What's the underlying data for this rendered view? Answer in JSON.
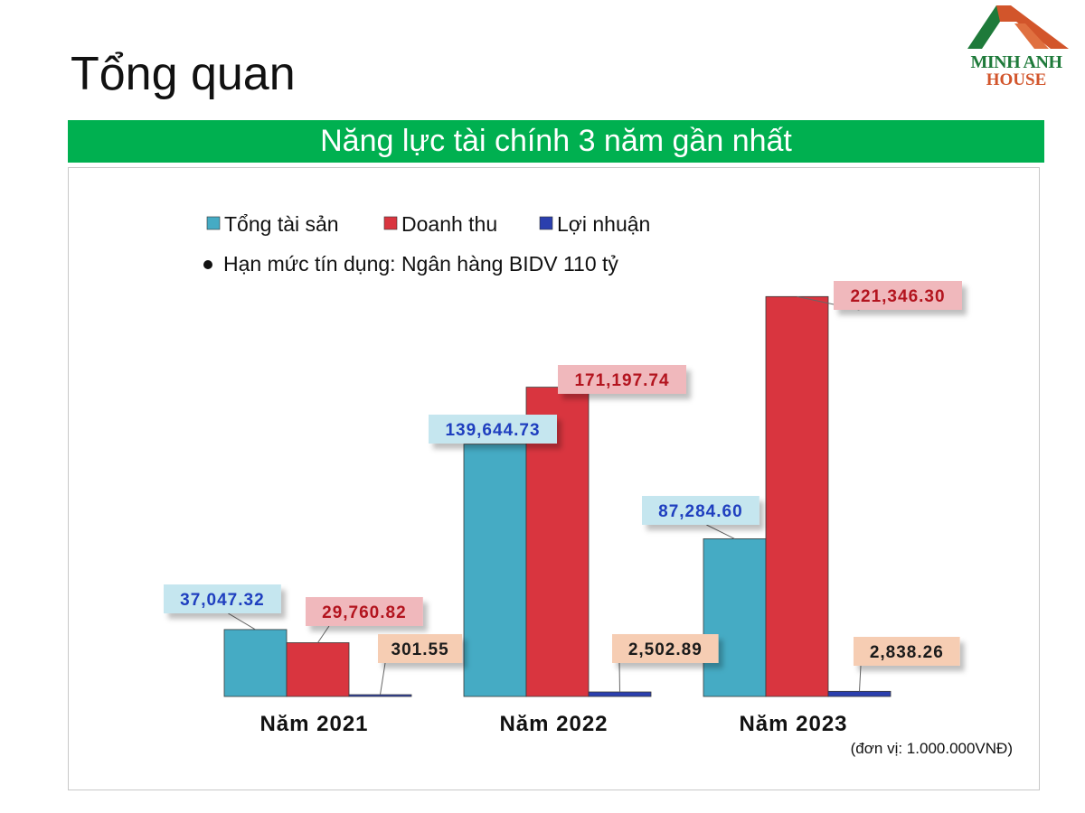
{
  "header": {
    "title": "Tổng quan",
    "banner": "Năng lực tài chính 3 năm gần nhất",
    "logo_line1": "MINH ANH",
    "logo_line2": "HOUSE"
  },
  "colors": {
    "banner": "#00b050",
    "series_assets": "#45abc4",
    "series_revenue": "#d9353f",
    "series_profit": "#2b3fae",
    "label_assets_bg": "#c5e6ef",
    "label_assets_text": "#1f3fbf",
    "label_revenue_bg": "#f0b8bc",
    "label_revenue_text": "#b3141e",
    "label_profit_bg": "#f6cdb3",
    "label_profit_text": "#1a1a1a",
    "logo_green": "#1e7a3a",
    "logo_orange": "#d2552b"
  },
  "chart_data": {
    "type": "bar",
    "categories": [
      "Năm 2021",
      "Năm 2022",
      "Năm 2023"
    ],
    "series": [
      {
        "name": "Tổng tài sản",
        "values": [
          37047.32,
          139644.73,
          87284.6
        ],
        "labels": [
          "37,047.32",
          "139,644.73",
          "87,284.60"
        ]
      },
      {
        "name": "Doanh thu",
        "values": [
          29760.82,
          171197.74,
          221346.3
        ],
        "labels": [
          "29,760.82",
          "171,197.74",
          "221,346.30"
        ]
      },
      {
        "name": "Lợi nhuận",
        "values": [
          301.55,
          2502.89,
          2838.26
        ],
        "labels": [
          "301.55",
          "2,502.89",
          "2,838.26"
        ]
      }
    ],
    "note": "Hạn mức tín dụng: Ngân hàng BIDV 110 tỷ",
    "unit": "(đơn vị: 1.000.000VNĐ)",
    "legend_position": "top-left",
    "grid": false,
    "ylim": [
      0,
      250000
    ]
  }
}
